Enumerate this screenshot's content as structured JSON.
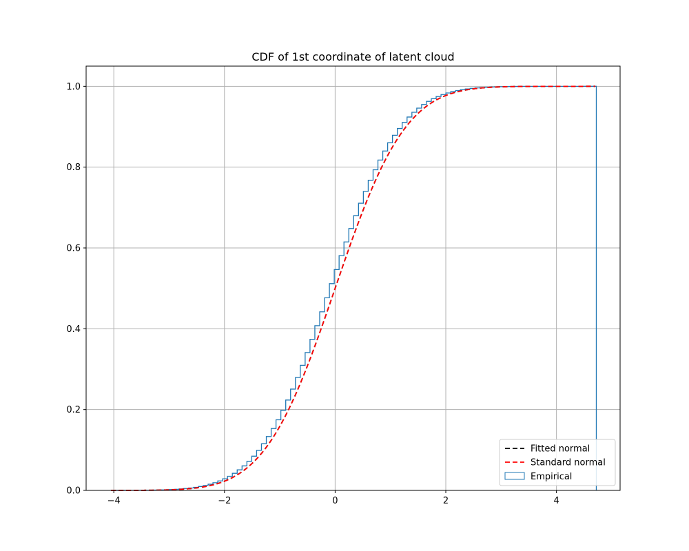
{
  "chart_data": {
    "type": "line",
    "title": "CDF of 1st coordinate of latent cloud",
    "xlabel": "",
    "ylabel": "",
    "xlim": [
      -4.5,
      5.15
    ],
    "ylim": [
      0.0,
      1.05
    ],
    "xticks": [
      -4,
      -2,
      0,
      2,
      4
    ],
    "xtick_labels": [
      "−4",
      "−2",
      "0",
      "2",
      "4"
    ],
    "yticks": [
      0.0,
      0.2,
      0.4,
      0.6,
      0.8,
      1.0
    ],
    "ytick_labels": [
      "0.0",
      "0.2",
      "0.4",
      "0.6",
      "0.8",
      "1.0"
    ],
    "grid": true,
    "legend_position": "lower-right",
    "series": [
      {
        "name": "Fitted normal",
        "kind": "line",
        "style": "dashed",
        "color": "#000000",
        "mean": 0.0,
        "std": 1.0,
        "x_range": [
          -4.05,
          4.7
        ]
      },
      {
        "name": "Standard normal",
        "kind": "line",
        "style": "dashed",
        "color": "#ff0000",
        "mean": 0.0,
        "std": 1.0,
        "x_range": [
          -4.05,
          4.7
        ]
      },
      {
        "name": "Empirical",
        "kind": "step-histogram",
        "color": "#1f77b4",
        "x_range": [
          -4.05,
          4.72
        ],
        "bins": 100,
        "shift": 0.045,
        "drop_at": 4.72
      }
    ]
  }
}
